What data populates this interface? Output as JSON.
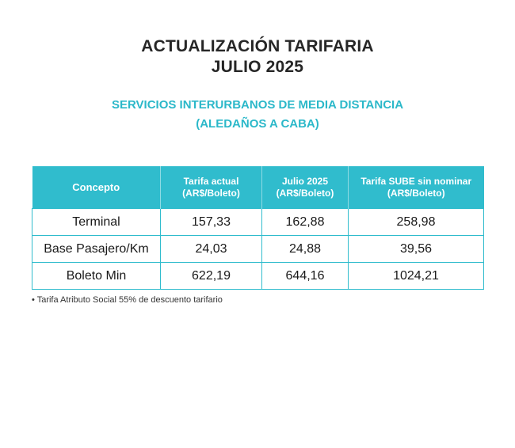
{
  "header": {
    "title_line1": "ACTUALIZACIÓN TARIFARIA",
    "title_line2": "JULIO 2025",
    "subtitle_line1": "SERVICIOS INTERURBANOS DE MEDIA DISTANCIA",
    "subtitle_line2": "(ALEDAÑOS A CABA)"
  },
  "table": {
    "columns": [
      {
        "line1": "Concepto",
        "line2": ""
      },
      {
        "line1": "Tarifa actual",
        "line2": "(AR$/Boleto)"
      },
      {
        "line1": "Julio 2025",
        "line2": "(AR$/Boleto)"
      },
      {
        "line1": "Tarifa SUBE sin nominar",
        "line2": "(AR$/Boleto)"
      }
    ],
    "rows": [
      [
        "Terminal",
        "157,33",
        "162,88",
        "258,98"
      ],
      [
        "Base Pasajero/Km",
        "24,03",
        "24,88",
        "39,56"
      ],
      [
        "Boleto Min",
        "622,19",
        "644,16",
        "1024,21"
      ]
    ]
  },
  "footnote": "• Tarifa Atributo Social 55% de descuento tarifario",
  "colors": {
    "accent": "#30bccd",
    "title": "#262626",
    "subtitle": "#2bb8c9"
  }
}
